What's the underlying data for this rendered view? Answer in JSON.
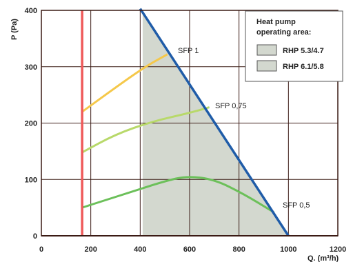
{
  "chart_data": {
    "type": "line",
    "title": "",
    "xlabel": "Q. (m³/h)",
    "ylabel": "P (Pa)",
    "xlim": [
      0,
      1200
    ],
    "ylim": [
      0,
      400
    ],
    "xticks": [
      0,
      200,
      400,
      600,
      800,
      1000,
      1200
    ],
    "yticks": [
      0,
      100,
      200,
      300,
      400
    ],
    "grid": true,
    "series": [
      {
        "name": "SFP 1",
        "color": "#f5c84a",
        "points": [
          [
            165,
            220
          ],
          [
            300,
            263
          ],
          [
            420,
            300
          ],
          [
            510,
            322
          ]
        ]
      },
      {
        "name": "SFP 0,75",
        "color": "#b8d96a",
        "points": [
          [
            165,
            148
          ],
          [
            300,
            180
          ],
          [
            450,
            203
          ],
          [
            600,
            218
          ],
          [
            680,
            228
          ]
        ]
      },
      {
        "name": "SFP 0,5",
        "color": "#6cc05a",
        "points": [
          [
            165,
            50
          ],
          [
            350,
            76
          ],
          [
            500,
            97
          ],
          [
            590,
            106
          ],
          [
            700,
            100
          ],
          [
            820,
            74
          ],
          [
            940,
            42
          ]
        ]
      },
      {
        "name": "",
        "color": "#1f5ca8",
        "points": [
          [
            400,
            403
          ],
          [
            1000,
            0
          ]
        ]
      },
      {
        "name": "",
        "color": "#ef5a5a",
        "points": [
          [
            165,
            0
          ],
          [
            165,
            400
          ]
        ]
      }
    ],
    "shaded_areas": [
      {
        "label": "RHP 5.3/4.7",
        "color": "#d3d8cf",
        "x_range": [
          410,
          1000
        ]
      },
      {
        "label": "RHP 6.1/5.8",
        "color": "#d3d8cf"
      }
    ],
    "legend": {
      "title": [
        "Heat pump",
        "operating area:"
      ],
      "placement": "top-right",
      "entries": [
        {
          "label": "RHP 5.3/4.7",
          "color": "#d3d8cf"
        },
        {
          "label": "RHP 6.1/5.8",
          "color": "#d3d8cf"
        }
      ]
    },
    "annotations": [
      "SFP 1",
      "SFP 0,75",
      "SFP 0,5"
    ]
  }
}
